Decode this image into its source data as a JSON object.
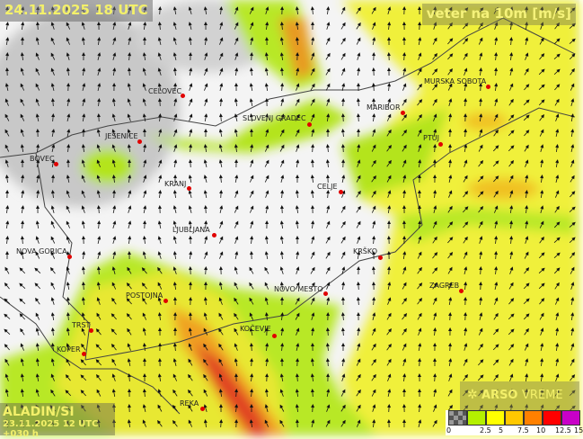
{
  "header": {
    "datetime": "24.11.2025 18 UTC",
    "variable": "veter na 10m [m/s]"
  },
  "model": {
    "name": "ALADIN/SI",
    "run": "23.11.2025 12 UTC +030 h"
  },
  "brand": {
    "name_bold": "ARSO",
    "name_light": "VREME",
    "icon": "arso-logo-icon"
  },
  "legend": {
    "colors": [
      "#808080",
      "#b4f000",
      "#ffff00",
      "#ffc800",
      "#ff8000",
      "#ff0000",
      "#c800c8"
    ],
    "ticks": [
      "0",
      "2.5",
      "5",
      "7.5",
      "10",
      "12.5",
      "15"
    ]
  },
  "cities": [
    {
      "name": "CELOVEC"
    },
    {
      "name": "JESENICE"
    },
    {
      "name": "BOVEC"
    },
    {
      "name": "KRANJ"
    },
    {
      "name": "LJUBLJANA"
    },
    {
      "name": "NOVA GORICA"
    },
    {
      "name": "POSTOJNA"
    },
    {
      "name": "TRST"
    },
    {
      "name": "KOPER"
    },
    {
      "name": "KOČEVJE"
    },
    {
      "name": "NOVO MESTO"
    },
    {
      "name": "KRŠKO"
    },
    {
      "name": "CELJE"
    },
    {
      "name": "SLOVENJ GRADEC"
    },
    {
      "name": "MARIBOR"
    },
    {
      "name": "PTUJ"
    },
    {
      "name": "MURSKA SOBOTA"
    },
    {
      "name": "ZAGREB"
    },
    {
      "name": "REKA"
    }
  ]
}
